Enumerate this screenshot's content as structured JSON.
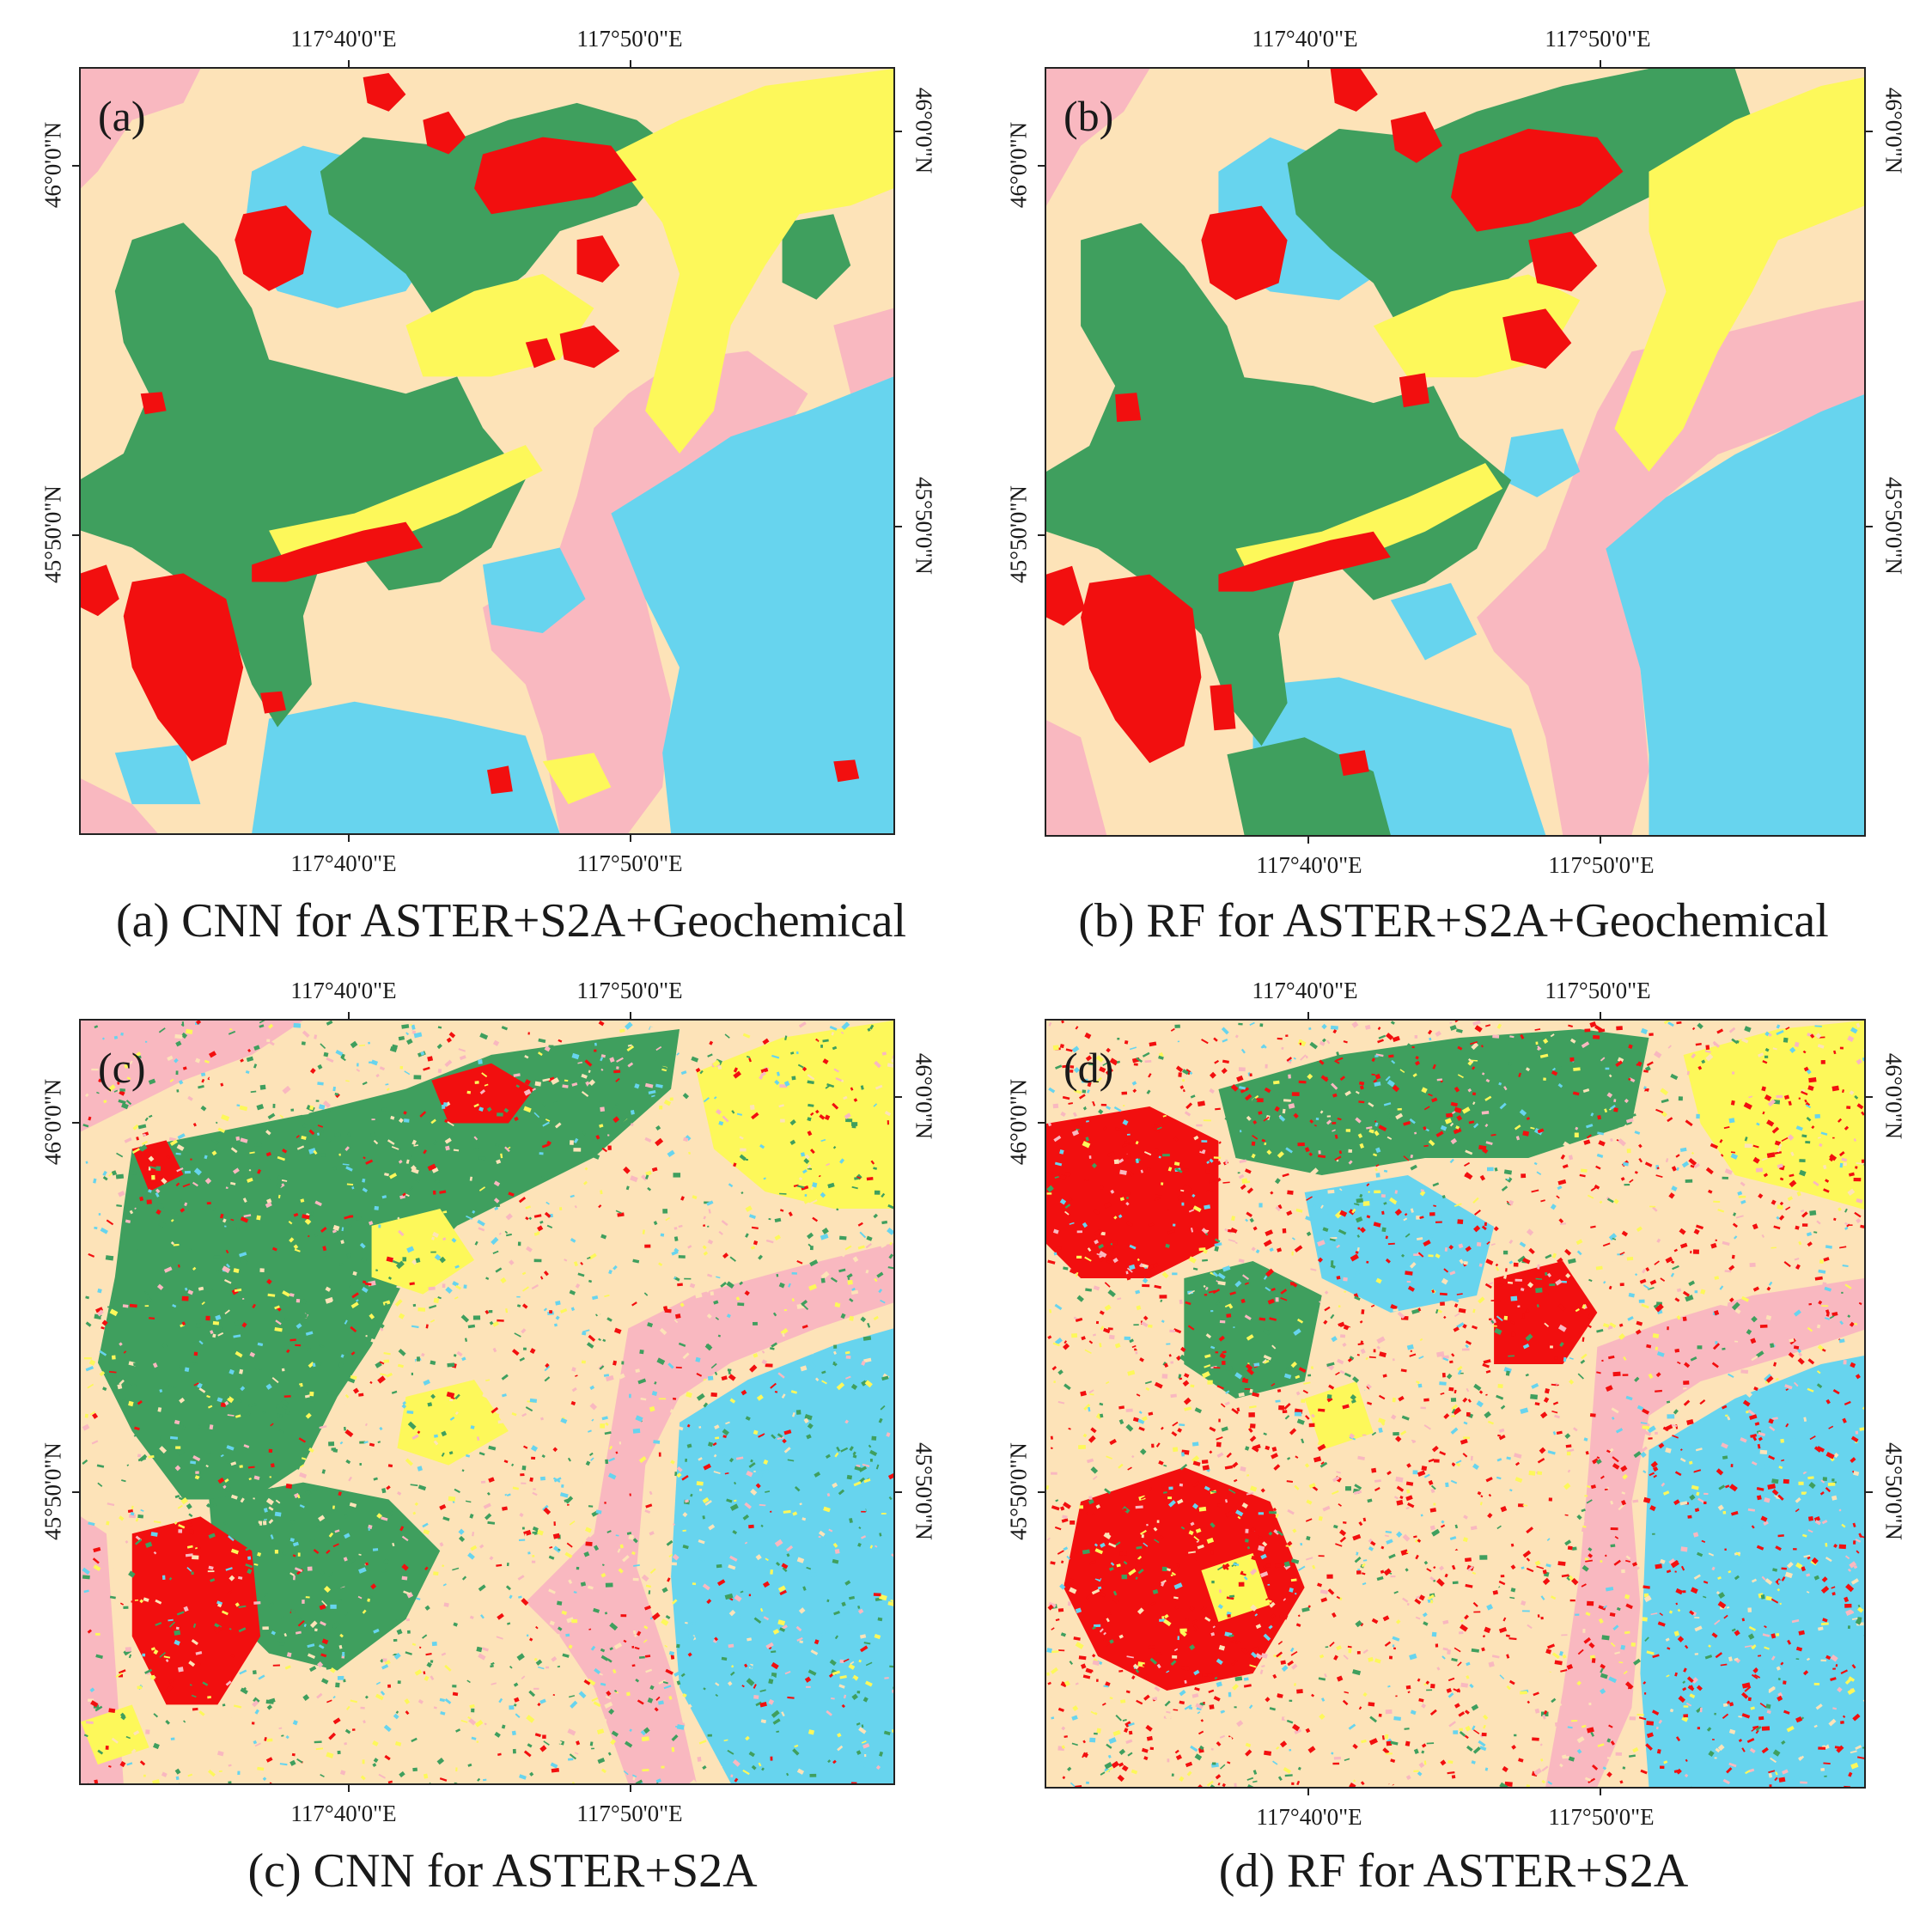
{
  "colors": {
    "background_class": "#fde3b8",
    "pink_class": "#f9b8c0",
    "green_class": "#3f9f5e",
    "blue_class": "#67d4ee",
    "yellow_class": "#fdf85a",
    "red_class": "#f20f0f"
  },
  "axes": {
    "lon_ticks": [
      "117°40'0\"E",
      "117°50'0\"E"
    ],
    "lat_ticks": [
      "46°0'0\"N",
      "45°50'0\"N"
    ]
  },
  "panels": [
    {
      "id": "a",
      "label": "(a)",
      "caption": "(a) CNN for ASTER+S2A+Geochemical",
      "pattern": "smooth"
    },
    {
      "id": "b",
      "label": "(b)",
      "caption": "(b) RF for ASTER+S2A+Geochemical",
      "pattern": "smooth"
    },
    {
      "id": "c",
      "label": "(c)",
      "caption": "(c) CNN for ASTER+S2A",
      "pattern": "noisy"
    },
    {
      "id": "d",
      "label": "(d)",
      "caption": "(d) RF for ASTER+S2A",
      "pattern": "noisy-red"
    }
  ]
}
